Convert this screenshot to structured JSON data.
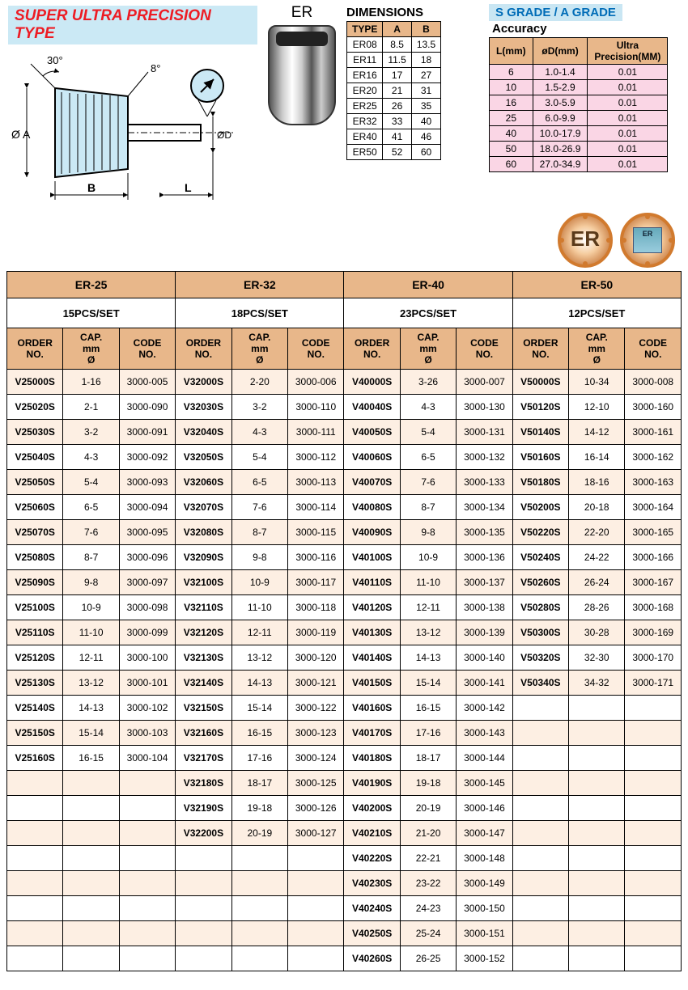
{
  "title": "SUPER ULTRA PRECISION TYPE",
  "er_label": "ER",
  "dimensions": {
    "title": "DIMENSIONS",
    "columns": [
      "TYPE",
      "A",
      "B"
    ],
    "rows": [
      [
        "ER08",
        "8.5",
        "13.5"
      ],
      [
        "ER11",
        "11.5",
        "18"
      ],
      [
        "ER16",
        "17",
        "27"
      ],
      [
        "ER20",
        "21",
        "31"
      ],
      [
        "ER25",
        "26",
        "35"
      ],
      [
        "ER32",
        "33",
        "40"
      ],
      [
        "ER40",
        "41",
        "46"
      ],
      [
        "ER50",
        "52",
        "60"
      ]
    ]
  },
  "grade": {
    "titlebar": "S GRADE / A GRADE",
    "subtitle": "Accuracy",
    "columns": [
      "L(mm)",
      "øD(mm)",
      "Ultra Precision(MM)"
    ],
    "rows": [
      [
        "6",
        "1.0-1.4",
        "0.01"
      ],
      [
        "10",
        "1.5-2.9",
        "0.01"
      ],
      [
        "16",
        "3.0-5.9",
        "0.01"
      ],
      [
        "25",
        "6.0-9.9",
        "0.01"
      ],
      [
        "40",
        "10.0-17.9",
        "0.01"
      ],
      [
        "50",
        "18.0-26.9",
        "0.01"
      ],
      [
        "60",
        "27.0-34.9",
        "0.01"
      ]
    ]
  },
  "badge1": "ER",
  "badge2": "ER",
  "main": {
    "total_rows": 24,
    "series": [
      {
        "name": "ER-25",
        "set": "15PCS/SET",
        "rows": [
          [
            "V25000S",
            "1-16",
            "3000-005"
          ],
          [
            "V25020S",
            "2-1",
            "3000-090"
          ],
          [
            "V25030S",
            "3-2",
            "3000-091"
          ],
          [
            "V25040S",
            "4-3",
            "3000-092"
          ],
          [
            "V25050S",
            "5-4",
            "3000-093"
          ],
          [
            "V25060S",
            "6-5",
            "3000-094"
          ],
          [
            "V25070S",
            "7-6",
            "3000-095"
          ],
          [
            "V25080S",
            "8-7",
            "3000-096"
          ],
          [
            "V25090S",
            "9-8",
            "3000-097"
          ],
          [
            "V25100S",
            "10-9",
            "3000-098"
          ],
          [
            "V25110S",
            "11-10",
            "3000-099"
          ],
          [
            "V25120S",
            "12-11",
            "3000-100"
          ],
          [
            "V25130S",
            "13-12",
            "3000-101"
          ],
          [
            "V25140S",
            "14-13",
            "3000-102"
          ],
          [
            "V25150S",
            "15-14",
            "3000-103"
          ],
          [
            "V25160S",
            "16-15",
            "3000-104"
          ]
        ]
      },
      {
        "name": "ER-32",
        "set": "18PCS/SET",
        "rows": [
          [
            "V32000S",
            "2-20",
            "3000-006"
          ],
          [
            "V32030S",
            "3-2",
            "3000-110"
          ],
          [
            "V32040S",
            "4-3",
            "3000-111"
          ],
          [
            "V32050S",
            "5-4",
            "3000-112"
          ],
          [
            "V32060S",
            "6-5",
            "3000-113"
          ],
          [
            "V32070S",
            "7-6",
            "3000-114"
          ],
          [
            "V32080S",
            "8-7",
            "3000-115"
          ],
          [
            "V32090S",
            "9-8",
            "3000-116"
          ],
          [
            "V32100S",
            "10-9",
            "3000-117"
          ],
          [
            "V32110S",
            "11-10",
            "3000-118"
          ],
          [
            "V32120S",
            "12-11",
            "3000-119"
          ],
          [
            "V32130S",
            "13-12",
            "3000-120"
          ],
          [
            "V32140S",
            "14-13",
            "3000-121"
          ],
          [
            "V32150S",
            "15-14",
            "3000-122"
          ],
          [
            "V32160S",
            "16-15",
            "3000-123"
          ],
          [
            "V32170S",
            "17-16",
            "3000-124"
          ],
          [
            "V32180S",
            "18-17",
            "3000-125"
          ],
          [
            "V32190S",
            "19-18",
            "3000-126"
          ],
          [
            "V32200S",
            "20-19",
            "3000-127"
          ]
        ]
      },
      {
        "name": "ER-40",
        "set": "23PCS/SET",
        "rows": [
          [
            "V40000S",
            "3-26",
            "3000-007"
          ],
          [
            "V40040S",
            "4-3",
            "3000-130"
          ],
          [
            "V40050S",
            "5-4",
            "3000-131"
          ],
          [
            "V40060S",
            "6-5",
            "3000-132"
          ],
          [
            "V40070S",
            "7-6",
            "3000-133"
          ],
          [
            "V40080S",
            "8-7",
            "3000-134"
          ],
          [
            "V40090S",
            "9-8",
            "3000-135"
          ],
          [
            "V40100S",
            "10-9",
            "3000-136"
          ],
          [
            "V40110S",
            "11-10",
            "3000-137"
          ],
          [
            "V40120S",
            "12-11",
            "3000-138"
          ],
          [
            "V40130S",
            "13-12",
            "3000-139"
          ],
          [
            "V40140S",
            "14-13",
            "3000-140"
          ],
          [
            "V40150S",
            "15-14",
            "3000-141"
          ],
          [
            "V40160S",
            "16-15",
            "3000-142"
          ],
          [
            "V40170S",
            "17-16",
            "3000-143"
          ],
          [
            "V40180S",
            "18-17",
            "3000-144"
          ],
          [
            "V40190S",
            "19-18",
            "3000-145"
          ],
          [
            "V40200S",
            "20-19",
            "3000-146"
          ],
          [
            "V40210S",
            "21-20",
            "3000-147"
          ],
          [
            "V40220S",
            "22-21",
            "3000-148"
          ],
          [
            "V40230S",
            "23-22",
            "3000-149"
          ],
          [
            "V40240S",
            "24-23",
            "3000-150"
          ],
          [
            "V40250S",
            "25-24",
            "3000-151"
          ],
          [
            "V40260S",
            "26-25",
            "3000-152"
          ]
        ]
      },
      {
        "name": "ER-50",
        "set": "12PCS/SET",
        "rows": [
          [
            "V50000S",
            "10-34",
            "3000-008"
          ],
          [
            "V50120S",
            "12-10",
            "3000-160"
          ],
          [
            "V50140S",
            "14-12",
            "3000-161"
          ],
          [
            "V50160S",
            "16-14",
            "3000-162"
          ],
          [
            "V50180S",
            "18-16",
            "3000-163"
          ],
          [
            "V50200S",
            "20-18",
            "3000-164"
          ],
          [
            "V50220S",
            "22-20",
            "3000-165"
          ],
          [
            "V50240S",
            "24-22",
            "3000-166"
          ],
          [
            "V50260S",
            "26-24",
            "3000-167"
          ],
          [
            "V50280S",
            "28-26",
            "3000-168"
          ],
          [
            "V50300S",
            "30-28",
            "3000-169"
          ],
          [
            "V50320S",
            "32-30",
            "3000-170"
          ],
          [
            "V50340S",
            "34-32",
            "3000-171"
          ]
        ]
      }
    ],
    "col_headers": [
      "ORDER NO.",
      "CAP. mm Ø",
      "CODE NO."
    ]
  }
}
